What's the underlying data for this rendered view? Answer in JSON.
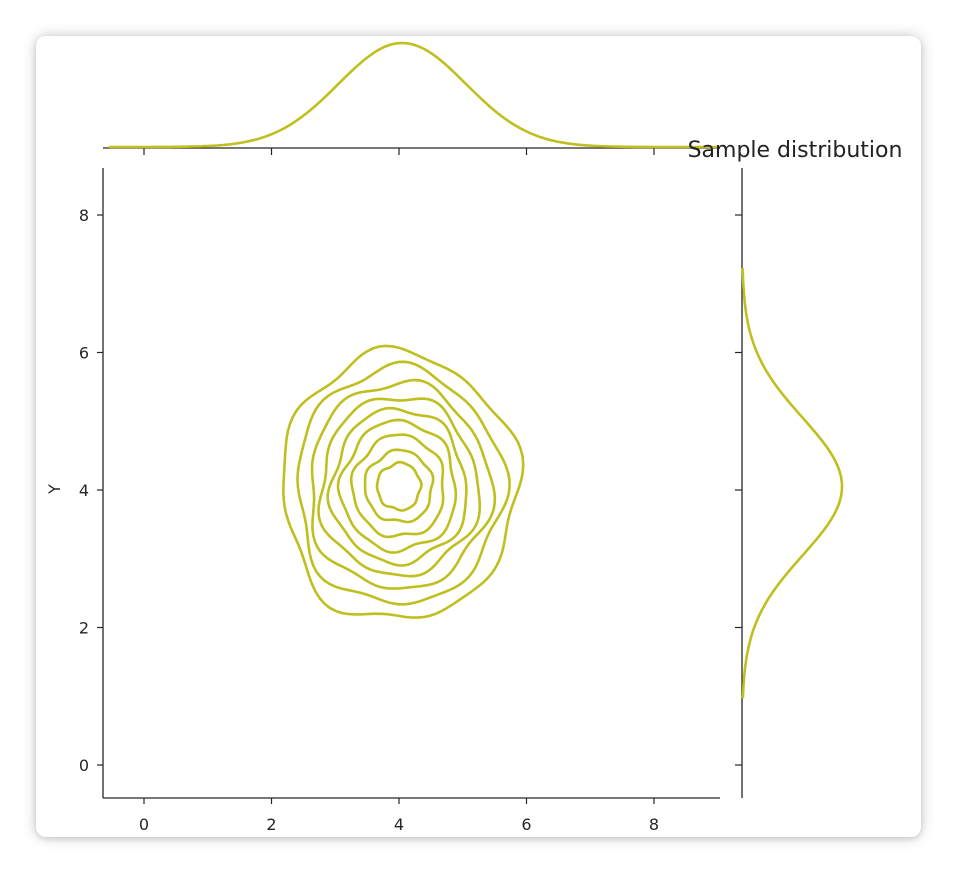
{
  "chart_data": {
    "type": "kde-jointplot",
    "title": "Sample distribution",
    "xlabel": "",
    "ylabel": "Y",
    "xlim": [
      -0.6,
      9.1
    ],
    "ylim": [
      -0.5,
      8.7
    ],
    "xticks": [
      0,
      2,
      4,
      6,
      8
    ],
    "yticks": [
      0,
      2,
      4,
      6,
      8
    ],
    "color": "#bfbf1f",
    "grid": false,
    "center": {
      "x": 4.0,
      "y": 4.05
    },
    "contours": [
      {
        "level": 1,
        "rx": 1.85,
        "ry": 1.95
      },
      {
        "level": 2,
        "rx": 1.62,
        "ry": 1.72
      },
      {
        "level": 3,
        "rx": 1.42,
        "ry": 1.5
      },
      {
        "level": 4,
        "rx": 1.24,
        "ry": 1.3
      },
      {
        "level": 5,
        "rx": 1.06,
        "ry": 1.12
      },
      {
        "level": 6,
        "rx": 0.9,
        "ry": 0.94
      },
      {
        "level": 7,
        "rx": 0.72,
        "ry": 0.74
      },
      {
        "level": 8,
        "rx": 0.53,
        "ry": 0.52
      },
      {
        "level": 9,
        "rx": 0.34,
        "ry": 0.34
      }
    ],
    "marginal_x": {
      "mean": 4.05,
      "sd": 1.0
    },
    "marginal_y": {
      "mean": 4.05,
      "sd": 1.0
    }
  }
}
